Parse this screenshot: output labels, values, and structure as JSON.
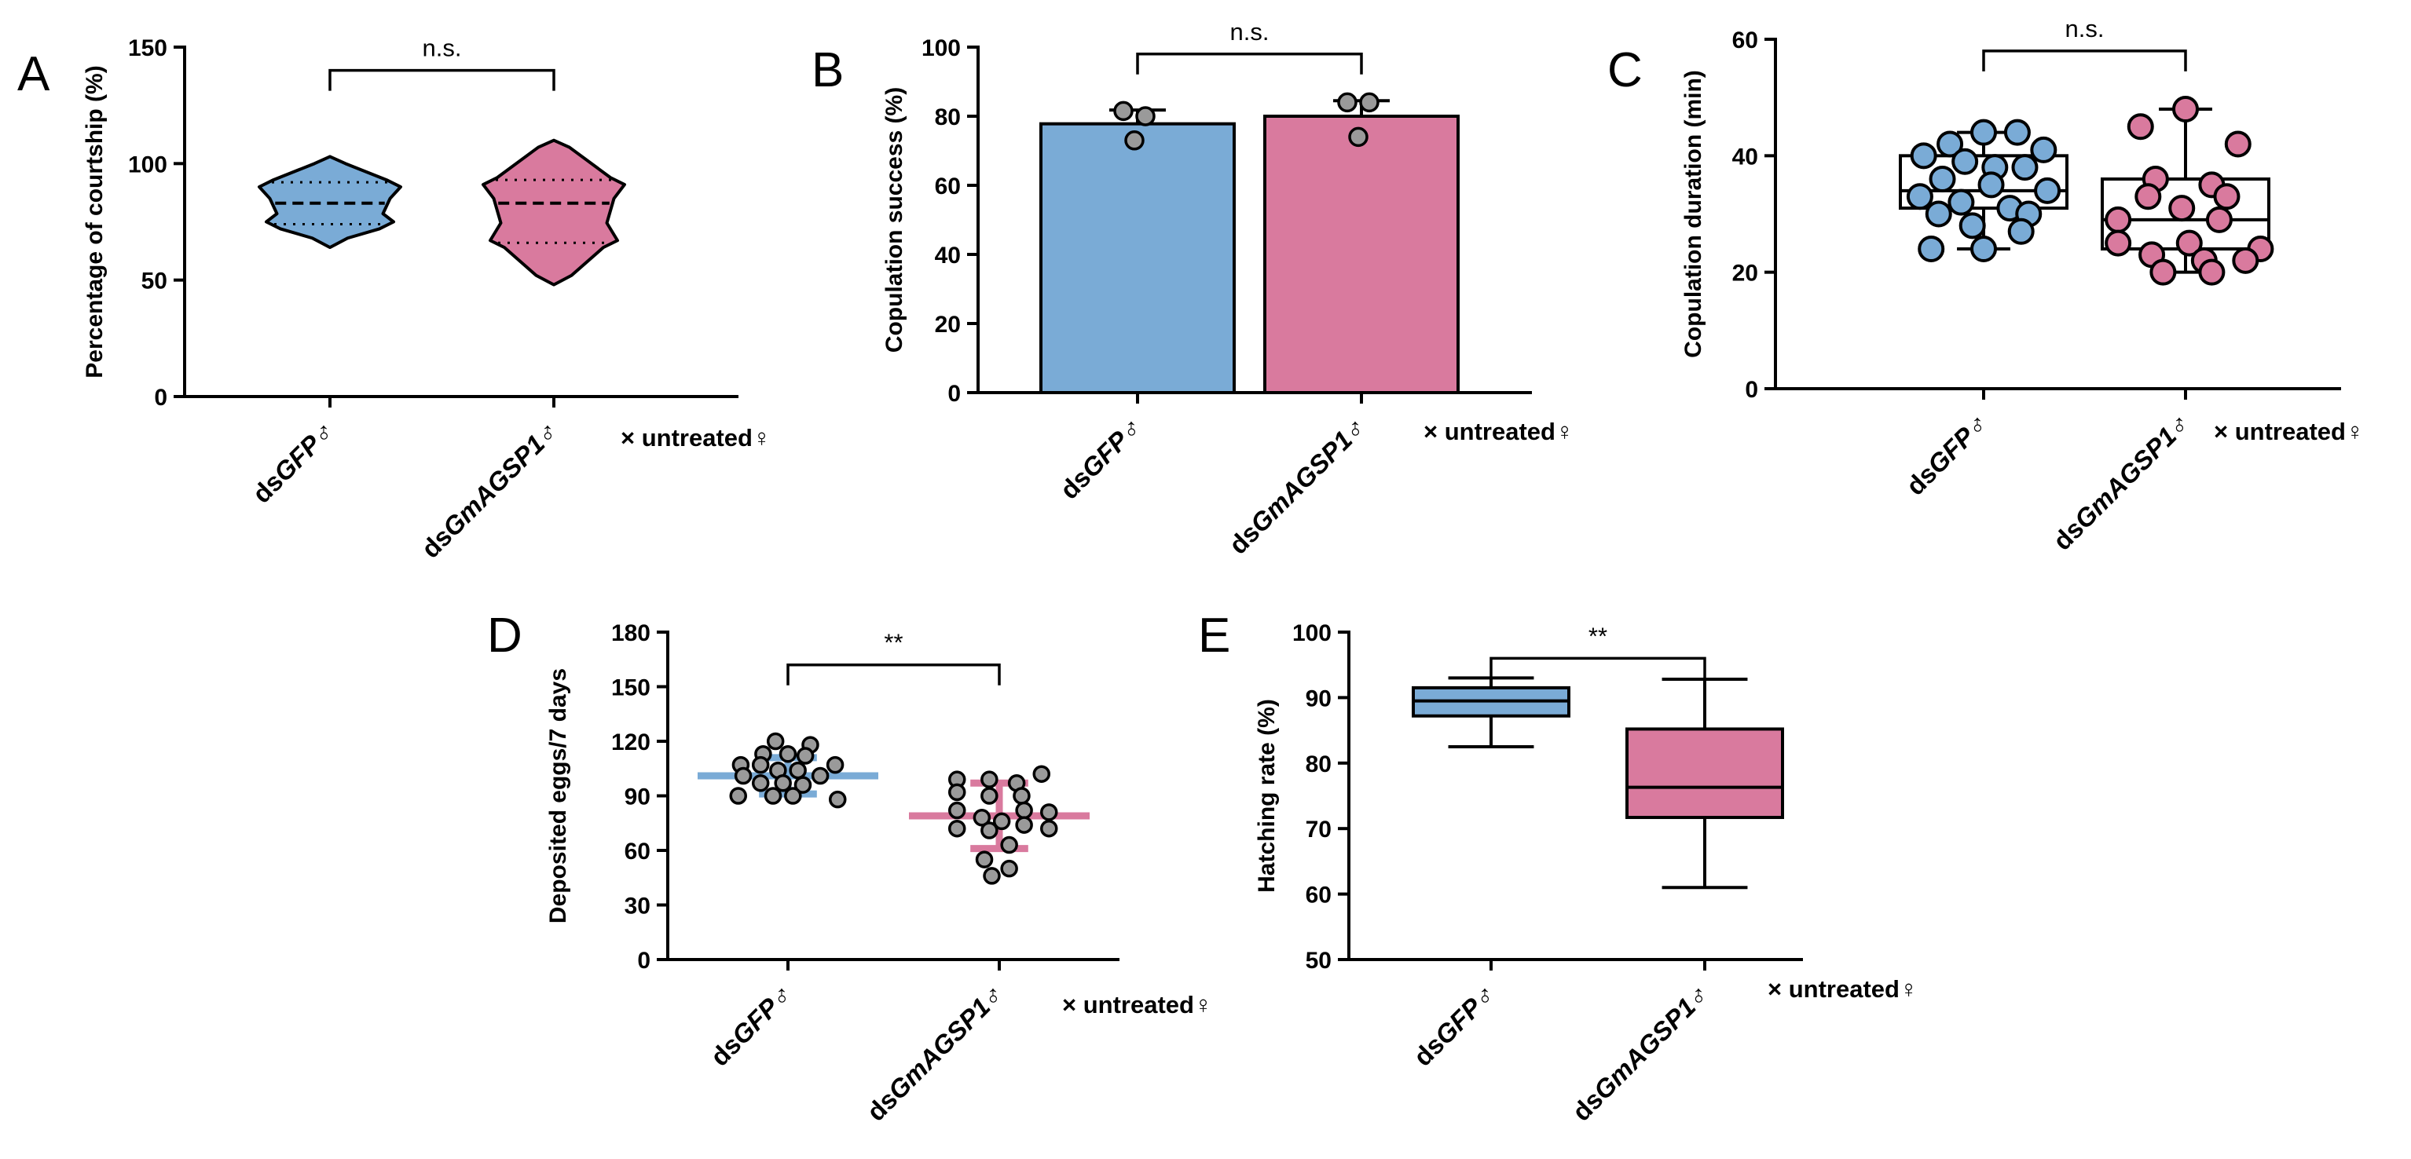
{
  "colors": {
    "blue": "#7aabd6",
    "pink": "#d97a9e",
    "dot": "#9a9a9a",
    "line": "#000000"
  },
  "cross_note": "× untreated♀",
  "chart_data": [
    {
      "id": "A",
      "type": "violin",
      "label": "A",
      "ylabel": "Percentage of courtship (%)",
      "ylim": [
        0,
        150
      ],
      "yticks": [
        "0",
        "50",
        "100",
        "150"
      ],
      "groups": [
        {
          "prefix": "ds",
          "gene": "GFP",
          "symbol": "♂",
          "color": "blue",
          "min": 64,
          "q1": 74,
          "median": 83,
          "q3": 92,
          "max": 103
        },
        {
          "prefix": "ds",
          "gene": "GmAGSP1",
          "symbol": "♂",
          "color": "pink",
          "min": 48,
          "q1": 66,
          "median": 83,
          "q3": 93,
          "max": 110
        }
      ],
      "significance": "n.s."
    },
    {
      "id": "B",
      "type": "bar",
      "label": "B",
      "ylabel": "Copulation success (%)",
      "ylim": [
        0,
        100
      ],
      "yticks": [
        "0",
        "20",
        "40",
        "60",
        "80",
        "100"
      ],
      "groups": [
        {
          "prefix": "ds",
          "gene": "GFP",
          "symbol": "♂",
          "color": "blue",
          "value": 77.8,
          "err": 4,
          "points": [
            81.5,
            80,
            73
          ]
        },
        {
          "prefix": "ds",
          "gene": "GmAGSP1",
          "symbol": "♂",
          "color": "pink",
          "value": 80,
          "err": 4.5,
          "points": [
            84,
            84,
            74
          ]
        }
      ],
      "significance": "n.s."
    },
    {
      "id": "C",
      "type": "box_points",
      "label": "C",
      "ylabel": "Copulation duration (min)",
      "ylim": [
        0,
        60
      ],
      "yticks": [
        "0",
        "20",
        "40",
        "60"
      ],
      "groups": [
        {
          "prefix": "ds",
          "gene": "GFP",
          "symbol": "♂",
          "color": "blue",
          "min": 24,
          "q1": 31,
          "median": 34,
          "q3": 40,
          "max": 44,
          "points": [
            [
              0,
              44
            ],
            [
              0.45,
              44
            ],
            [
              -0.45,
              42
            ],
            [
              -0.8,
              40
            ],
            [
              0.8,
              41
            ],
            [
              -0.25,
              39
            ],
            [
              0.15,
              38
            ],
            [
              0.55,
              38
            ],
            [
              -0.55,
              36
            ],
            [
              0.1,
              35
            ],
            [
              -0.85,
              33
            ],
            [
              0.85,
              34
            ],
            [
              -0.3,
              32
            ],
            [
              0.35,
              31
            ],
            [
              -0.6,
              30
            ],
            [
              0.6,
              30
            ],
            [
              -0.15,
              28
            ],
            [
              0.5,
              27
            ],
            [
              -0.7,
              24
            ],
            [
              0,
              24
            ]
          ]
        },
        {
          "prefix": "ds",
          "gene": "GmAGSP1",
          "symbol": "♂",
          "color": "pink",
          "min": 20,
          "q1": 24,
          "median": 29,
          "q3": 36,
          "max": 48,
          "points": [
            [
              0,
              48
            ],
            [
              -0.6,
              45
            ],
            [
              0.7,
              42
            ],
            [
              -0.4,
              36
            ],
            [
              0.35,
              35
            ],
            [
              0.55,
              33
            ],
            [
              -0.5,
              33
            ],
            [
              -0.05,
              31
            ],
            [
              -0.9,
              29
            ],
            [
              0.45,
              29
            ],
            [
              -0.9,
              25
            ],
            [
              0.05,
              25
            ],
            [
              1.0,
              24
            ],
            [
              -0.45,
              23
            ],
            [
              0.25,
              22
            ],
            [
              0.8,
              22
            ],
            [
              -0.3,
              20
            ],
            [
              0.35,
              20
            ]
          ]
        }
      ],
      "significance": "n.s."
    },
    {
      "id": "D",
      "type": "scatter_mean_sd",
      "label": "D",
      "ylabel": "Deposited eggs/7 days",
      "ylim": [
        0,
        180
      ],
      "yticks": [
        "0",
        "30",
        "60",
        "90",
        "120",
        "150",
        "180"
      ],
      "groups": [
        {
          "prefix": "ds",
          "gene": "GFP",
          "symbol": "♂",
          "color": "blue",
          "mean": 101,
          "sd": 10,
          "points": [
            [
              -0.25,
              120
            ],
            [
              0.45,
              118
            ],
            [
              -0.5,
              113
            ],
            [
              0,
              113
            ],
            [
              0.35,
              112
            ],
            [
              -0.95,
              107
            ],
            [
              -0.55,
              107
            ],
            [
              0.95,
              107
            ],
            [
              -0.2,
              104
            ],
            [
              0.2,
              104
            ],
            [
              -0.9,
              101
            ],
            [
              0.65,
              101
            ],
            [
              -0.55,
              97
            ],
            [
              -0.1,
              97
            ],
            [
              0.3,
              96
            ],
            [
              -1.0,
              90
            ],
            [
              -0.3,
              90
            ],
            [
              0.1,
              90
            ],
            [
              1.0,
              88
            ]
          ]
        },
        {
          "prefix": "ds",
          "gene": "GmAGSP1",
          "symbol": "♂",
          "color": "pink",
          "mean": 79,
          "sd": 18,
          "points": [
            [
              0.85,
              102
            ],
            [
              -0.85,
              99
            ],
            [
              -0.2,
              99
            ],
            [
              0.35,
              97
            ],
            [
              -0.85,
              92
            ],
            [
              -0.2,
              90
            ],
            [
              0.45,
              90
            ],
            [
              -0.85,
              82
            ],
            [
              0.5,
              82
            ],
            [
              1.0,
              81
            ],
            [
              -0.35,
              78
            ],
            [
              0.05,
              76
            ],
            [
              -0.85,
              72
            ],
            [
              0.5,
              74
            ],
            [
              1.0,
              72
            ],
            [
              -0.2,
              71
            ],
            [
              0.2,
              63
            ],
            [
              -0.3,
              55
            ],
            [
              0.2,
              50
            ],
            [
              -0.15,
              46
            ]
          ]
        }
      ],
      "significance": "**"
    },
    {
      "id": "E",
      "type": "box",
      "label": "E",
      "ylabel": "Hatching rate (%)",
      "ylim": [
        50,
        100
      ],
      "yticks": [
        "50",
        "60",
        "70",
        "80",
        "90",
        "100"
      ],
      "groups": [
        {
          "prefix": "ds",
          "gene": "GFP",
          "symbol": "♂",
          "color": "blue",
          "min": 82.5,
          "q1": 87.2,
          "median": 89.5,
          "q3": 91.5,
          "max": 93
        },
        {
          "prefix": "ds",
          "gene": "GmAGSP1",
          "symbol": "♂",
          "color": "pink",
          "min": 61,
          "q1": 71.7,
          "median": 76.3,
          "q3": 85.2,
          "max": 92.8
        }
      ],
      "significance": "**"
    }
  ]
}
